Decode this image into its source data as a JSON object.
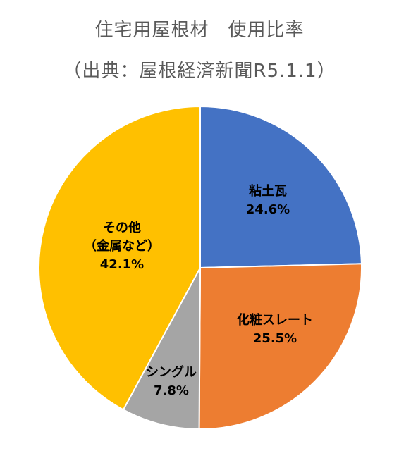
{
  "title": "住宅用屋根材　使用比率",
  "subtitle": "（出典：屋根経済新聞R5.1.1）",
  "chart_data": {
    "type": "pie",
    "title": "住宅用屋根材　使用比率",
    "subtitle": "（出典：屋根経済新聞R5.1.1）",
    "start_angle_deg": 0,
    "direction": "clockwise",
    "slices": [
      {
        "name": "粘土瓦",
        "value": 24.6,
        "label_lines": [
          "粘土瓦",
          "24.6%"
        ],
        "color": "#4472C4"
      },
      {
        "name": "化粧スレート",
        "value": 25.5,
        "label_lines": [
          "化粧スレート",
          "25.5%"
        ],
        "color": "#ED7D31"
      },
      {
        "name": "シングル",
        "value": 7.8,
        "label_lines": [
          "シングル",
          "7.8%"
        ],
        "color": "#A5A5A5"
      },
      {
        "name": "その他（金属など）",
        "value": 42.1,
        "label_lines": [
          "その他",
          "（金属など）",
          "42.1%"
        ],
        "color": "#FFC000"
      }
    ]
  }
}
